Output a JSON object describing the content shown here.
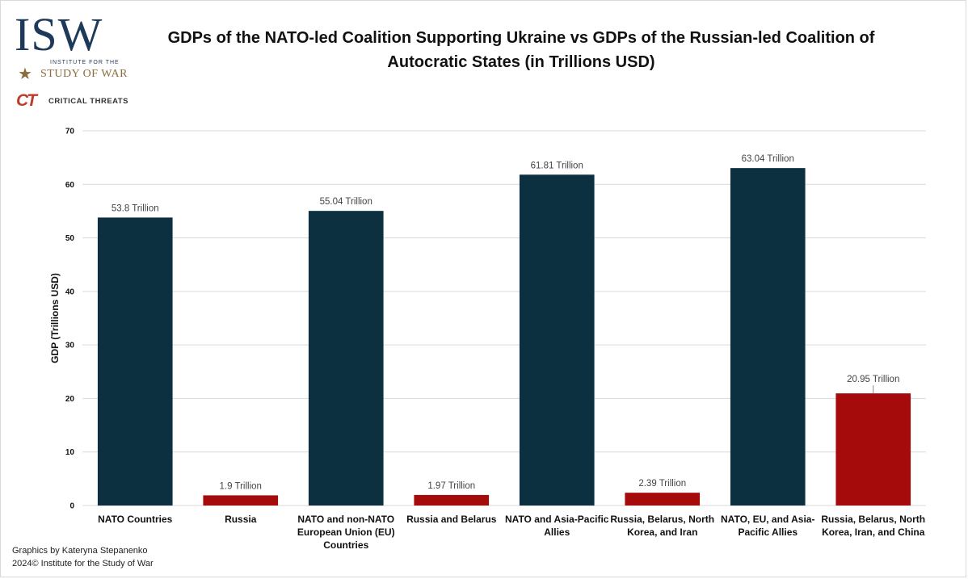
{
  "logos": {
    "isw_mark": "ISW",
    "isw_line1": "INSTITUTE FOR THE",
    "isw_line2": "STUDY OF WAR",
    "ct_mark": "CT",
    "ct_text": "CRITICAL THREATS"
  },
  "credits": {
    "line1": "Graphics by Kateryna Stepanenko",
    "line2": "2024© Institute for the Study of War"
  },
  "colors": {
    "nato": "#0d3040",
    "russia": "#a50b0b",
    "grid": "#d9d9d9"
  },
  "chart_data": {
    "type": "bar",
    "title": "GDPs of the NATO-led Coalition Supporting Ukraine vs GDPs of the Russian-led Coalition of Autocratic States (in Trillions USD)",
    "ylabel": "GDP (Trillions USD)",
    "xlabel": "",
    "ylim": [
      0,
      70
    ],
    "yticks": [
      0,
      10,
      20,
      30,
      40,
      50,
      60,
      70
    ],
    "grid": true,
    "categories": [
      [
        "NATO Countries"
      ],
      [
        "Russia"
      ],
      [
        "NATO and non-NATO",
        "European Union (EU)",
        "Countries"
      ],
      [
        "Russia and Belarus"
      ],
      [
        "NATO and Asia-Pacific",
        "Allies"
      ],
      [
        "Russia, Belarus, North",
        "Korea, and Iran"
      ],
      [
        "NATO, EU, and Asia-",
        "Pacific Allies"
      ],
      [
        "Russia, Belarus, North",
        "Korea, Iran, and China"
      ]
    ],
    "values": [
      53.8,
      1.9,
      55.04,
      1.97,
      61.81,
      2.39,
      63.04,
      20.95
    ],
    "data_labels": [
      "53.8 Trillion",
      "1.9 Trillion",
      "55.04 Trillion",
      "1.97 Trillion",
      "61.81 Trillion",
      "2.39 Trillion",
      "63.04 Trillion",
      "20.95 Trillion"
    ],
    "bar_groups": [
      "nato",
      "russia",
      "nato",
      "russia",
      "nato",
      "russia",
      "nato",
      "russia"
    ]
  }
}
